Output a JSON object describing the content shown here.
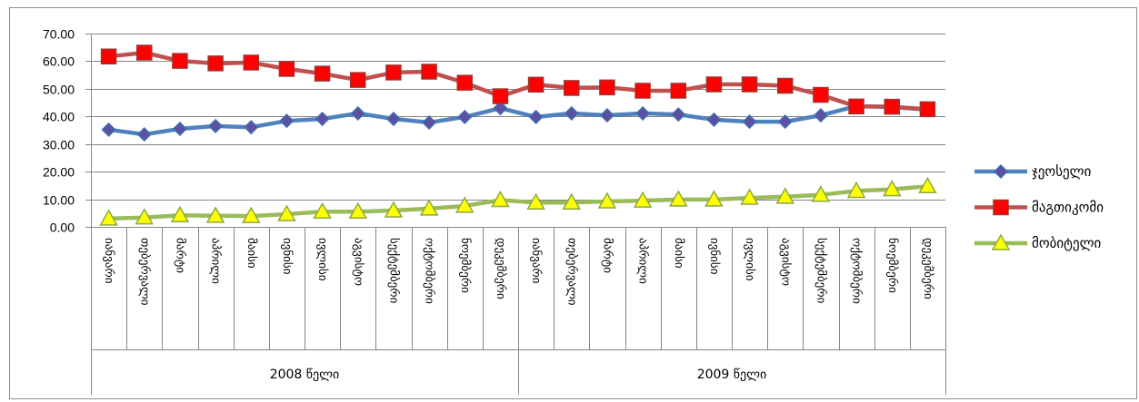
{
  "chart_data": {
    "type": "line",
    "categories": [
      "იანვარი",
      "თებერვალი",
      "მარტი",
      "აპრილი",
      "მაისი",
      "ივნისი",
      "ივლისი",
      "აგვისტო",
      "სექტემბერი",
      "ოქტომბერი",
      "ნოემბერი",
      "დეკემბერი",
      "იანვარი",
      "თებერვალი",
      "მარტი",
      "აპრილი",
      "მაისი",
      "ივნისი",
      "ივლისი",
      "აგვისტო",
      "სექტემბერი",
      "ოქტომბერი",
      "ნოემბერი",
      "დეკემბერი"
    ],
    "category_groups": [
      {
        "label": "2008 წელი",
        "span": 12
      },
      {
        "label": "2009 წელი",
        "span": 12
      }
    ],
    "ylim": [
      0,
      70
    ],
    "yticks": [
      "0.00",
      "10.00",
      "20.00",
      "30.00",
      "40.00",
      "50.00",
      "60.00",
      "70.00"
    ],
    "grid": true,
    "legend_position": "right",
    "series": [
      {
        "name": "ჯეოსელი",
        "line_color": "#4F81BD",
        "marker": "diamond",
        "marker_fill": "#5E4FA2",
        "marker_stroke": "#3F6FB0",
        "values": [
          35.2,
          33.5,
          35.5,
          36.5,
          36.1,
          38.4,
          39.1,
          41.1,
          39.1,
          37.8,
          39.8,
          43.0,
          39.8,
          41.1,
          40.4,
          41.1,
          40.7,
          38.8,
          38.1,
          38.1,
          40.4,
          43.7,
          43.4,
          42.4
        ]
      },
      {
        "name": "მაგთიკომი",
        "line_color": "#C0504D",
        "marker": "square",
        "marker_fill": "#FF0000",
        "marker_stroke": "#A0322E",
        "values": [
          61.7,
          63.1,
          60.1,
          59.2,
          59.5,
          57.2,
          55.5,
          53.2,
          55.9,
          56.2,
          52.2,
          47.3,
          51.5,
          50.3,
          50.5,
          49.3,
          49.3,
          51.6,
          51.6,
          51.1,
          47.8,
          43.6,
          43.5,
          42.6
        ]
      },
      {
        "name": "მობიტელი",
        "line_color": "#9BBB59",
        "marker": "triangle",
        "marker_fill": "#FFFF00",
        "marker_stroke": "#8CA844",
        "values": [
          3.0,
          3.4,
          4.2,
          4.0,
          3.9,
          4.6,
          5.5,
          5.5,
          5.9,
          6.6,
          7.6,
          9.7,
          8.8,
          8.8,
          9.2,
          9.5,
          9.9,
          9.9,
          10.5,
          10.9,
          11.6,
          13.0,
          13.6,
          14.7
        ]
      }
    ]
  }
}
